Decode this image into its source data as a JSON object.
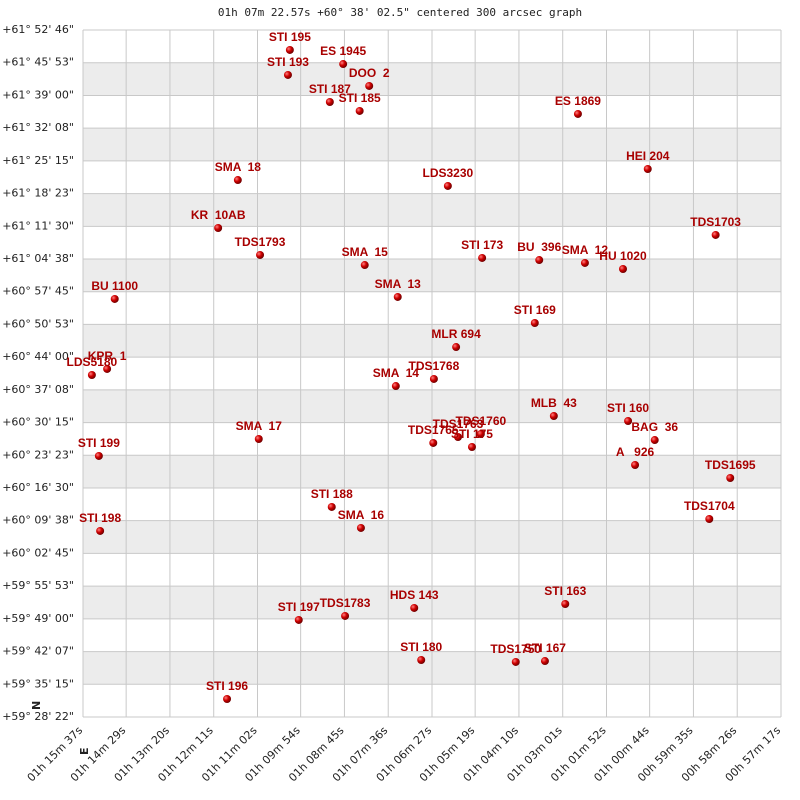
{
  "chart_data": {
    "type": "scatter",
    "title": "01h 07m 22.57s +60° 38' 02.5\" centered 300 arcsec graph",
    "compass": [
      "N",
      "E"
    ],
    "color": "#c00000",
    "xlim": [
      4537,
      3437
    ],
    "ylim": [
      214102,
      222766
    ],
    "xticks": [
      {
        "value": 4537,
        "label": "01h 15m 37s"
      },
      {
        "value": 4469,
        "label": "01h 14m 29s"
      },
      {
        "value": 4400,
        "label": "01h 13m 20s"
      },
      {
        "value": 4331,
        "label": "01h 12m 11s"
      },
      {
        "value": 4262,
        "label": "01h 11m 02s"
      },
      {
        "value": 4194,
        "label": "01h 09m 54s"
      },
      {
        "value": 4125,
        "label": "01h 08m 45s"
      },
      {
        "value": 4056,
        "label": "01h 07m 36s"
      },
      {
        "value": 3987,
        "label": "01h 06m 27s"
      },
      {
        "value": 3919,
        "label": "01h 05m 19s"
      },
      {
        "value": 3850,
        "label": "01h 04m 10s"
      },
      {
        "value": 3781,
        "label": "01h 03m 01s"
      },
      {
        "value": 3712,
        "label": "01h 01m 52s"
      },
      {
        "value": 3644,
        "label": "01h 00m 44s"
      },
      {
        "value": 3575,
        "label": "00h 59m 35s"
      },
      {
        "value": 3506,
        "label": "00h 58m 26s"
      },
      {
        "value": 3437,
        "label": "00h 57m 17s"
      }
    ],
    "yticks": [
      {
        "value": 222766,
        "label": "+61° 52' 46\""
      },
      {
        "value": 222353,
        "label": "+61° 45' 53\""
      },
      {
        "value": 221940,
        "label": "+61° 39' 00\""
      },
      {
        "value": 221528,
        "label": "+61° 32' 08\""
      },
      {
        "value": 221115,
        "label": "+61° 25' 15\""
      },
      {
        "value": 220703,
        "label": "+61° 18' 23\""
      },
      {
        "value": 220290,
        "label": "+61° 11' 30\""
      },
      {
        "value": 219878,
        "label": "+61° 04' 38\""
      },
      {
        "value": 219465,
        "label": "+60° 57' 45\""
      },
      {
        "value": 219053,
        "label": "+60° 50' 53\""
      },
      {
        "value": 218640,
        "label": "+60° 44' 00\""
      },
      {
        "value": 218228,
        "label": "+60° 37' 08\""
      },
      {
        "value": 217815,
        "label": "+60° 30' 15\""
      },
      {
        "value": 217403,
        "label": "+60° 23' 23\""
      },
      {
        "value": 216990,
        "label": "+60° 16' 30\""
      },
      {
        "value": 216578,
        "label": "+60° 09' 38\""
      },
      {
        "value": 216165,
        "label": "+60° 02' 45\""
      },
      {
        "value": 215753,
        "label": "+59° 55' 53\""
      },
      {
        "value": 215340,
        "label": "+59° 49' 00\""
      },
      {
        "value": 214927,
        "label": "+59° 42' 07\""
      },
      {
        "value": 214515,
        "label": "+59° 35' 15\""
      },
      {
        "value": 214102,
        "label": "+59° 28' 22\""
      }
    ],
    "point_labels": [
      "STI 195",
      "ES 1945",
      "STI 193",
      "DOO  2",
      "STI 187",
      "STI 185",
      "ES 1869",
      "HEI 204",
      "SMA  18",
      "LDS3230",
      "KR  10AB",
      "TDS1703",
      "TDS1793",
      "STI 173",
      "BU  396",
      "SMA  15",
      "SMA  12",
      "HU 1020",
      "BU 1100",
      "SMA  13",
      "STI 169",
      "MLR 694",
      "KPR  1",
      "LDS5180",
      "TDS1768",
      "SMA  14",
      "MLB  43",
      "STI 160",
      "TDS1760",
      "TDS1763",
      "BAG  36",
      "TDS1765",
      "STI 175",
      "SMA  17",
      "STI 199",
      "A   926",
      "TDS1695",
      "STI 188",
      "TDS1704",
      "SMA  16",
      "STI 198",
      "STI 163",
      "HDS 143",
      "TDS1783",
      "STI 197",
      "STI 180",
      "TDS1750",
      "STI 167",
      "STI 196"
    ],
    "x": [
      4211,
      4127,
      4214,
      4086,
      4148,
      4101,
      3757,
      3647,
      4293,
      3962,
      4324,
      3540,
      4258,
      3908,
      3818,
      4093,
      3746,
      3686,
      4487,
      4041,
      3825,
      3949,
      4499,
      4523,
      3984,
      4044,
      3795,
      3678,
      3910,
      3946,
      3636,
      3985,
      3924,
      4260,
      4512,
      3667,
      3517,
      4145,
      3550,
      4099,
      4510,
      3777,
      4015,
      4124,
      4197,
      4004,
      3855,
      3809,
      4310
    ],
    "values": [
      222514,
      222337,
      222199,
      222060,
      221858,
      221745,
      221707,
      221013,
      220874,
      220799,
      220269,
      220181,
      219929,
      219891,
      219865,
      219802,
      219828,
      219752,
      219374,
      219399,
      219071,
      218768,
      218491,
      218415,
      218365,
      218276,
      217898,
      217835,
      217671,
      217633,
      217595,
      217558,
      217507,
      217608,
      217394,
      217280,
      217116,
      216751,
      216599,
      216486,
      216448,
      215527,
      215477,
      215376,
      215326,
      214821,
      214796,
      214808,
      214329
    ]
  }
}
